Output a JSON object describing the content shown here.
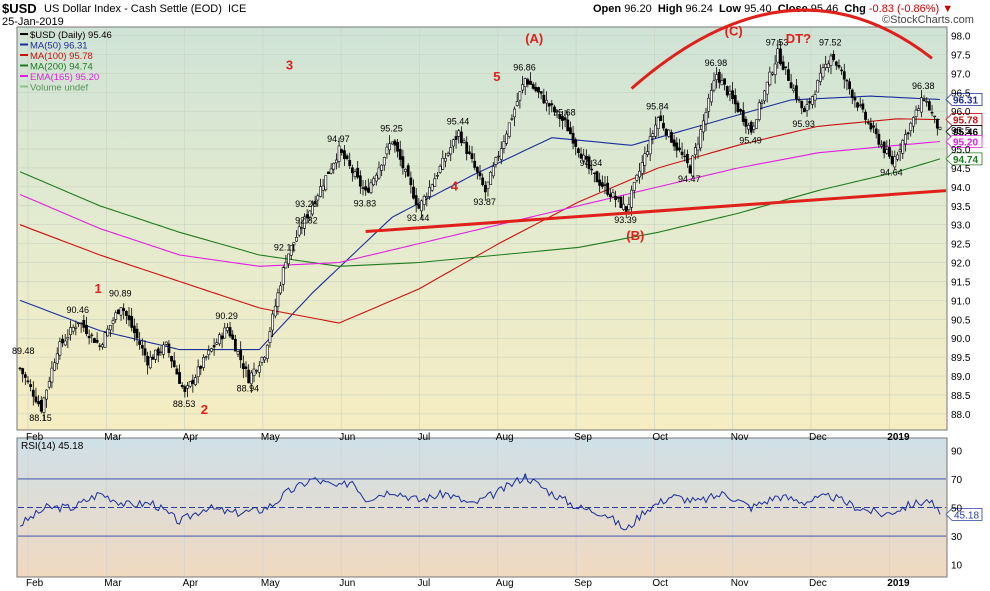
{
  "header": {
    "symbol": "$USD",
    "name": "US Dollar Index - Cash Settle (EOD)",
    "exchange": "ICE",
    "date": "25-Jan-2019",
    "brand": "©StockCharts.com",
    "quote": {
      "open_label": "Open",
      "open": "96.20",
      "high_label": "High",
      "high": "96.24",
      "low_label": "Low",
      "low": "95.40",
      "close_label": "Close",
      "close": "95.46",
      "chg_label": "Chg",
      "chg": "-0.83 (-0.86%)"
    }
  },
  "legend": [
    {
      "label": "$USD (Daily) 95.46",
      "color": "#000000"
    },
    {
      "label": "MA(50) 96.31",
      "color": "#1c2d9c"
    },
    {
      "label": "MA(100) 95.78",
      "color": "#cc1111"
    },
    {
      "label": "MA(200) 94.74",
      "color": "#1f7a1f"
    },
    {
      "label": "EMA(165) 95.20",
      "color": "#e020e0"
    },
    {
      "label": "Volume undef",
      "color": "#8fbf8f"
    }
  ],
  "chart_data": [
    {
      "type": "candlestick",
      "title": "US Dollar Index - Cash Settle (EOD)",
      "x_ticks": [
        "Feb",
        "Mar",
        "Apr",
        "May",
        "Jun",
        "Jul",
        "Aug",
        "Sep",
        "Oct",
        "Nov",
        "Dec",
        "2019"
      ],
      "y_ticks": [
        88.0,
        88.5,
        89.0,
        89.5,
        90.0,
        90.5,
        91.0,
        91.5,
        92.0,
        92.5,
        93.0,
        93.5,
        94.0,
        94.5,
        95.0,
        95.5,
        96.0,
        96.5,
        97.0,
        97.5,
        98.0
      ],
      "ylim": [
        87.6,
        98.2
      ],
      "price_path": [
        [
          0,
          89.2
        ],
        [
          8,
          88.15
        ],
        [
          14,
          89.7
        ],
        [
          22,
          90.46
        ],
        [
          30,
          89.8
        ],
        [
          38,
          90.89
        ],
        [
          48,
          89.4
        ],
        [
          55,
          89.8
        ],
        [
          62,
          88.53
        ],
        [
          70,
          89.5
        ],
        [
          78,
          90.29
        ],
        [
          86,
          88.94
        ],
        [
          92,
          89.6
        ],
        [
          100,
          92.11
        ],
        [
          108,
          93.26
        ],
        [
          120,
          94.97
        ],
        [
          130,
          93.83
        ],
        [
          140,
          95.25
        ],
        [
          150,
          93.44
        ],
        [
          165,
          95.44
        ],
        [
          175,
          93.87
        ],
        [
          190,
          96.86
        ],
        [
          205,
          95.68
        ],
        [
          215,
          94.34
        ],
        [
          228,
          93.39
        ],
        [
          240,
          95.84
        ],
        [
          252,
          94.47
        ],
        [
          262,
          96.98
        ],
        [
          275,
          95.49
        ],
        [
          285,
          97.53
        ],
        [
          295,
          95.93
        ],
        [
          305,
          97.52
        ],
        [
          318,
          95.8
        ],
        [
          328,
          94.64
        ],
        [
          340,
          96.38
        ],
        [
          346,
          95.46
        ]
      ],
      "price_labels": [
        "90.46",
        "90.89",
        "88.15",
        "88.53",
        "90.29",
        "88.94",
        "93.26",
        "92.11",
        "94.97",
        "92.82",
        "93.83",
        "95.25",
        "93.44",
        "95.44",
        "93.87",
        "96.86",
        "95.68",
        "94.34",
        "93.39",
        "95.84",
        "94.47",
        "96.98",
        "95.49",
        "97.53",
        "95.93",
        "97.52",
        "94.64",
        "96.38",
        "89.48"
      ],
      "series": [
        {
          "name": "MA(50)",
          "color": "#1c2d9c",
          "path": [
            [
              0,
              91.0
            ],
            [
              30,
              90.2
            ],
            [
              60,
              89.7
            ],
            [
              90,
              89.7
            ],
            [
              110,
              91.2
            ],
            [
              140,
              93.2
            ],
            [
              170,
              94.3
            ],
            [
              200,
              95.3
            ],
            [
              230,
              95.1
            ],
            [
              260,
              95.7
            ],
            [
              290,
              96.3
            ],
            [
              320,
              96.4
            ],
            [
              346,
              96.31
            ]
          ]
        },
        {
          "name": "MA(100)",
          "color": "#cc1111",
          "path": [
            [
              0,
              93.0
            ],
            [
              30,
              92.2
            ],
            [
              60,
              91.5
            ],
            [
              90,
              90.8
            ],
            [
              120,
              90.4
            ],
            [
              150,
              91.3
            ],
            [
              180,
              92.5
            ],
            [
              210,
              93.6
            ],
            [
              240,
              94.5
            ],
            [
              270,
              95.1
            ],
            [
              300,
              95.6
            ],
            [
              330,
              95.8
            ],
            [
              346,
              95.78
            ]
          ]
        },
        {
          "name": "MA(200)",
          "color": "#1f7a1f",
          "path": [
            [
              0,
              94.4
            ],
            [
              30,
              93.5
            ],
            [
              60,
              92.8
            ],
            [
              90,
              92.2
            ],
            [
              120,
              91.9
            ],
            [
              150,
              92.0
            ],
            [
              180,
              92.2
            ],
            [
              210,
              92.4
            ],
            [
              240,
              92.8
            ],
            [
              270,
              93.3
            ],
            [
              300,
              93.9
            ],
            [
              330,
              94.4
            ],
            [
              346,
              94.74
            ]
          ]
        },
        {
          "name": "EMA(165)",
          "color": "#e020e0",
          "path": [
            [
              0,
              93.8
            ],
            [
              30,
              92.9
            ],
            [
              60,
              92.2
            ],
            [
              90,
              91.9
            ],
            [
              120,
              92.0
            ],
            [
              150,
              92.5
            ],
            [
              180,
              93.0
            ],
            [
              210,
              93.5
            ],
            [
              240,
              94.0
            ],
            [
              270,
              94.5
            ],
            [
              300,
              94.9
            ],
            [
              330,
              95.1
            ],
            [
              346,
              95.2
            ]
          ]
        }
      ],
      "last_value_tags": [
        {
          "value": 96.31,
          "label": "96.31",
          "color": "#1c2d9c"
        },
        {
          "value": 95.78,
          "label": "95.78",
          "color": "#cc1111"
        },
        {
          "value": 95.46,
          "label": "95.46",
          "color": "#000000"
        },
        {
          "value": 95.2,
          "label": "95.20",
          "color": "#e020e0"
        },
        {
          "value": 94.74,
          "label": "94.74",
          "color": "#1f7a1f"
        }
      ],
      "annotations": [
        {
          "label": "1",
          "x": 28,
          "y": 91.2
        },
        {
          "label": "2",
          "x": 68,
          "y": 88.0
        },
        {
          "label": "3",
          "x": 100,
          "y": 97.1
        },
        {
          "label": "4",
          "x": 162,
          "y": 93.9
        },
        {
          "label": "5",
          "x": 178,
          "y": 96.8
        },
        {
          "label": "(A)",
          "x": 190,
          "y": 97.8
        },
        {
          "label": "(B)",
          "x": 228,
          "y": 92.6
        },
        {
          "label": "(C)",
          "x": 265,
          "y": 98.0
        },
        {
          "label": "DT?",
          "x": 288,
          "y": 97.8
        }
      ],
      "trendline": [
        [
          130,
          92.82
        ],
        [
          346,
          93.9
        ]
      ],
      "arc": [
        [
          230,
          96.6
        ],
        [
          290,
          98.45
        ],
        [
          346,
          97.4
        ]
      ]
    },
    {
      "type": "line",
      "title": "RSI(14) 45.18",
      "series": [
        {
          "name": "RSI(14)",
          "color": "#1c2d9c",
          "values_path": [
            [
              0,
              38
            ],
            [
              10,
              50
            ],
            [
              20,
              50
            ],
            [
              30,
              60
            ],
            [
              40,
              52
            ],
            [
              50,
              53
            ],
            [
              60,
              40
            ],
            [
              70,
              50
            ],
            [
              80,
              46
            ],
            [
              90,
              48
            ],
            [
              95,
              52
            ],
            [
              100,
              60
            ],
            [
              110,
              70
            ],
            [
              120,
              64
            ],
            [
              125,
              69
            ],
            [
              130,
              56
            ],
            [
              140,
              62
            ],
            [
              150,
              55
            ],
            [
              160,
              60
            ],
            [
              170,
              52
            ],
            [
              180,
              61
            ],
            [
              190,
              72
            ],
            [
              200,
              60
            ],
            [
              210,
              50
            ],
            [
              220,
              46
            ],
            [
              228,
              34
            ],
            [
              235,
              48
            ],
            [
              245,
              58
            ],
            [
              255,
              54
            ],
            [
              265,
              60
            ],
            [
              275,
              50
            ],
            [
              285,
              58
            ],
            [
              295,
              54
            ],
            [
              305,
              58
            ],
            [
              315,
              50
            ],
            [
              325,
              45
            ],
            [
              335,
              52
            ],
            [
              342,
              55
            ],
            [
              346,
              45.18
            ]
          ]
        }
      ],
      "y_ticks": [
        10,
        30,
        50,
        70,
        90
      ],
      "ylim": [
        2,
        98
      ],
      "levels": [
        70,
        50,
        30
      ],
      "value_tag": "45.18"
    }
  ]
}
